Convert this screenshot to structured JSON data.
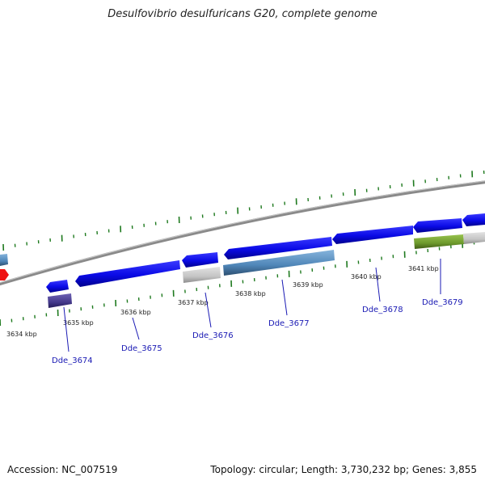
{
  "title": "Desulfovibrio desulfuricans G20, complete genome",
  "footer": {
    "accession": "Accession: NC_007519",
    "info": "Topology: circular; Length: 3,730,232 bp; Genes: 3,855"
  },
  "colors": {
    "forward_gene": "#0a0ae6",
    "steel_gene": "#4f86b8",
    "grey_gene": "#c4c4c4",
    "olive_gene": "#6d9a2c",
    "purple_gene": "#453a8c",
    "red_marker": "#ee1111",
    "tick_green": "#1f7a1f",
    "backbone": "#8a8a8a",
    "label_blue": "#1a1ab4"
  },
  "kbp_ticks": [
    "3634 kbp",
    "3635 kbp",
    "3636 kbp",
    "3637 kbp",
    "3638 kbp",
    "3639 kbp",
    "3640 kbp",
    "3641 kbp"
  ],
  "gene_labels": [
    "Dde_3674",
    "Dde_3675",
    "Dde_3676",
    "Dde_3677",
    "Dde_3678",
    "Dde_3679"
  ]
}
